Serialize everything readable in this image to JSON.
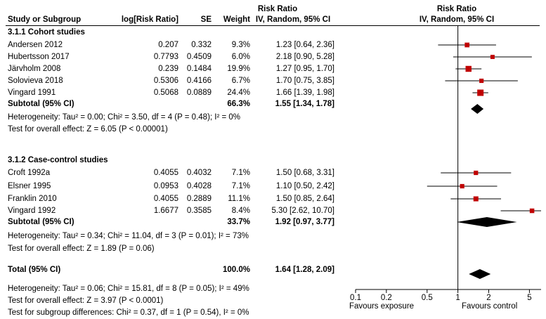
{
  "header": {
    "risk_ratio_top": "Risk Ratio",
    "risk_ratio_top_plot": "Risk Ratio",
    "study": "Study or Subgroup",
    "log_rr": "log[Risk Ratio]",
    "se": "SE",
    "weight": "Weight",
    "method": "IV, Random, 95% CI",
    "method_plot": "IV, Random, 95% CI"
  },
  "subgroups": [
    {
      "title": "3.1.1 Cohort studies",
      "studies": [
        {
          "name": "Andersen 2012",
          "log_rr": "0.207",
          "se": "0.332",
          "weight": "9.3%",
          "ci": "1.23 [0.64, 2.36]"
        },
        {
          "name": "Hubertsson 2017",
          "log_rr": "0.7793",
          "se": "0.4509",
          "weight": "6.0%",
          "ci": "2.18 [0.90, 5.28]"
        },
        {
          "name": "Järvholm 2008",
          "log_rr": "0.239",
          "se": "0.1484",
          "weight": "19.9%",
          "ci": "1.27 [0.95, 1.70]"
        },
        {
          "name": "Solovieva 2018",
          "log_rr": "0.5306",
          "se": "0.4166",
          "weight": "6.7%",
          "ci": "1.70 [0.75, 3.85]"
        },
        {
          "name": "Vingard 1991",
          "log_rr": "0.5068",
          "se": "0.0889",
          "weight": "24.4%",
          "ci": "1.66 [1.39, 1.98]"
        }
      ],
      "subtotal": {
        "label": "Subtotal (95% CI)",
        "weight": "66.3%",
        "ci": "1.55 [1.34, 1.78]"
      },
      "heterogeneity": "Heterogeneity: Tau² = 0.00; Chi² = 3.50, df = 4 (P = 0.48); I² = 0%",
      "overall": "Test for overall effect: Z = 6.05 (P < 0.00001)"
    },
    {
      "title": "3.1.2 Case-control studies",
      "studies": [
        {
          "name": "Croft 1992a",
          "log_rr": "0.4055",
          "se": "0.4032",
          "weight": "7.1%",
          "ci": "1.50 [0.68, 3.31]"
        },
        {
          "name": "Elsner 1995",
          "log_rr": "0.0953",
          "se": "0.4028",
          "weight": "7.1%",
          "ci": "1.10 [0.50, 2.42]"
        },
        {
          "name": "Franklin 2010",
          "log_rr": "0.4055",
          "se": "0.2889",
          "weight": "11.1%",
          "ci": "1.50 [0.85, 2.64]"
        },
        {
          "name": "Vingard 1992",
          "log_rr": "1.6677",
          "se": "0.3585",
          "weight": "8.4%",
          "ci": "5.30 [2.62, 10.70]"
        }
      ],
      "subtotal": {
        "label": "Subtotal (95% CI)",
        "weight": "33.7%",
        "ci": "1.92 [0.97, 3.77]"
      },
      "heterogeneity": "Heterogeneity: Tau² = 0.34; Chi² = 11.04, df = 3 (P = 0.01); I² = 73%",
      "overall": "Test for overall effect: Z = 1.89 (P = 0.06)"
    }
  ],
  "total": {
    "label": "Total (95% CI)",
    "weight": "100.0%",
    "ci": "1.64 [1.28, 2.09]",
    "heterogeneity": "Heterogeneity: Tau² = 0.06; Chi² = 15.81, df = 8 (P = 0.05); I² = 49%",
    "overall": "Test for overall effect: Z = 3.97 (P < 0.0001)",
    "subgroup_diff": "Test for subgroup differences: Chi² = 0.37, df = 1 (P = 0.54), I² = 0%"
  },
  "axis_labels": {
    "favours_left": "Favours exposure",
    "favours_right": "Favours control"
  },
  "colors": {
    "marker": "#c00000",
    "diamond": "#000000"
  },
  "chart_data": {
    "type": "forest",
    "scale": "log",
    "xlim": [
      0.1,
      6.5
    ],
    "ticks": [
      {
        "value": 0.1,
        "label": "0.1"
      },
      {
        "value": 0.2,
        "label": "0.2"
      },
      {
        "value": 0.5,
        "label": "0.5"
      },
      {
        "value": 1,
        "label": "1"
      },
      {
        "value": 2,
        "label": "2"
      },
      {
        "value": 5,
        "label": "5"
      }
    ],
    "studies": [
      {
        "name": "Andersen 2012",
        "rr": 1.23,
        "lo": 0.64,
        "hi": 2.36,
        "weight": 9.3
      },
      {
        "name": "Hubertsson 2017",
        "rr": 2.18,
        "lo": 0.9,
        "hi": 5.28,
        "weight": 6.0
      },
      {
        "name": "Järvholm 2008",
        "rr": 1.27,
        "lo": 0.95,
        "hi": 1.7,
        "weight": 19.9
      },
      {
        "name": "Solovieva 2018",
        "rr": 1.7,
        "lo": 0.75,
        "hi": 3.85,
        "weight": 6.7
      },
      {
        "name": "Vingard 1991",
        "rr": 1.66,
        "lo": 1.39,
        "hi": 1.98,
        "weight": 24.4
      },
      {
        "name": "Croft 1992a",
        "rr": 1.5,
        "lo": 0.68,
        "hi": 3.31,
        "weight": 7.1
      },
      {
        "name": "Elsner 1995",
        "rr": 1.1,
        "lo": 0.5,
        "hi": 2.42,
        "weight": 7.1
      },
      {
        "name": "Franklin 2010",
        "rr": 1.5,
        "lo": 0.85,
        "hi": 2.64,
        "weight": 11.1
      },
      {
        "name": "Vingard 1992",
        "rr": 5.3,
        "lo": 2.62,
        "hi": 10.7,
        "weight": 8.4
      }
    ],
    "diamonds": [
      {
        "name": "Subtotal 3.1.1",
        "rr": 1.55,
        "lo": 1.34,
        "hi": 1.78
      },
      {
        "name": "Subtotal 3.1.2",
        "rr": 1.92,
        "lo": 0.97,
        "hi": 3.77
      },
      {
        "name": "Total",
        "rr": 1.64,
        "lo": 1.28,
        "hi": 2.09
      }
    ]
  }
}
